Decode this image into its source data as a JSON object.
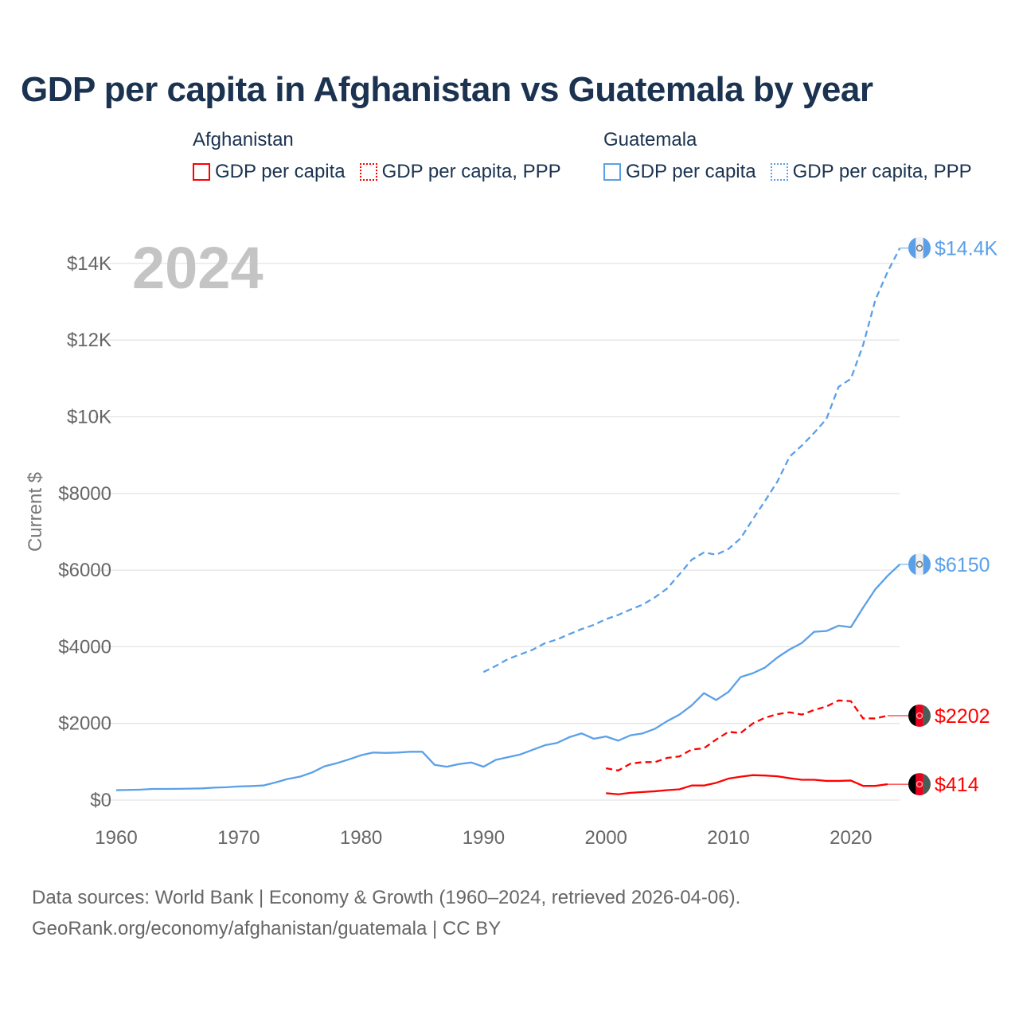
{
  "title": "GDP per capita in Afghanistan vs Guatemala by year",
  "legend": {
    "groups": [
      {
        "country": "Afghanistan",
        "color": "#ff0000",
        "items": [
          "GDP per capita",
          "GDP per capita, PPP"
        ]
      },
      {
        "country": "Guatemala",
        "color": "#5aa0e8",
        "items": [
          "GDP per capita",
          "GDP per capita, PPP"
        ]
      }
    ]
  },
  "footer": {
    "line1": "Data sources: World Bank | Economy & Growth (1960–2024, retrieved 2026-04-06).",
    "line2": "GeoRank.org/economy/afghanistan/guatemala | CC BY"
  },
  "chart_data": {
    "type": "line",
    "title": "GDP per capita in Afghanistan vs Guatemala by year",
    "ylabel": "Current $",
    "xlabel": "",
    "year_watermark": "2024",
    "xlim": [
      1960,
      2024
    ],
    "ylim": [
      0,
      14400
    ],
    "xticks": [
      1960,
      1970,
      1980,
      1990,
      2000,
      2010,
      2020
    ],
    "xtick_labels": [
      "1960",
      "1970",
      "1980",
      "1990",
      "2000",
      "2010",
      "2020"
    ],
    "yticks": [
      0,
      2000,
      4000,
      6000,
      8000,
      10000,
      12000,
      14000
    ],
    "ytick_labels": [
      "$0",
      "$2000",
      "$4000",
      "$6000",
      "$8000",
      "$10K",
      "$12K",
      "$14K"
    ],
    "grid": true,
    "series": [
      {
        "name": "Guatemala GDP per capita, PPP",
        "country": "Guatemala",
        "color": "#5aa0e8",
        "dash": true,
        "end_label": "$14.4K",
        "x_start": 1990,
        "values": [
          3340,
          3500,
          3680,
          3800,
          3920,
          4090,
          4190,
          4330,
          4460,
          4570,
          4720,
          4830,
          4970,
          5100,
          5290,
          5520,
          5890,
          6270,
          6460,
          6400,
          6550,
          6830,
          7330,
          7810,
          8310,
          8960,
          9250,
          9580,
          9940,
          10780,
          10990,
          11870,
          13050,
          13780,
          14400
        ]
      },
      {
        "name": "Guatemala GDP per capita",
        "country": "Guatemala",
        "color": "#5aa0e8",
        "dash": false,
        "end_label": "$6150",
        "x_start": 1960,
        "values": [
          258,
          265,
          273,
          290,
          290,
          293,
          298,
          305,
          325,
          335,
          355,
          365,
          380,
          460,
          550,
          610,
          720,
          880,
          960,
          1060,
          1170,
          1240,
          1230,
          1240,
          1260,
          1260,
          920,
          870,
          940,
          980,
          870,
          1050,
          1120,
          1190,
          1310,
          1430,
          1490,
          1640,
          1740,
          1600,
          1660,
          1550,
          1690,
          1740,
          1860,
          2060,
          2230,
          2470,
          2790,
          2610,
          2820,
          3210,
          3310,
          3460,
          3720,
          3930,
          4100,
          4390,
          4410,
          4550,
          4510,
          5020,
          5500,
          5850,
          6150
        ]
      },
      {
        "name": "Afghanistan GDP per capita, PPP",
        "country": "Afghanistan",
        "color": "#ff0000",
        "dash": true,
        "end_label": "$2202",
        "x_start": 2000,
        "values": [
          830,
          770,
          950,
          990,
          990,
          1100,
          1140,
          1320,
          1350,
          1580,
          1780,
          1750,
          2000,
          2150,
          2240,
          2290,
          2230,
          2350,
          2440,
          2600,
          2580,
          2130,
          2130,
          2202
        ]
      },
      {
        "name": "Afghanistan GDP per capita",
        "country": "Afghanistan",
        "color": "#ff0000",
        "dash": false,
        "end_label": "$414",
        "x_start": 2000,
        "values": [
          180,
          150,
          190,
          210,
          230,
          260,
          280,
          380,
          380,
          450,
          560,
          610,
          650,
          640,
          620,
          570,
          530,
          530,
          500,
          500,
          510,
          370,
          370,
          414
        ]
      }
    ]
  }
}
